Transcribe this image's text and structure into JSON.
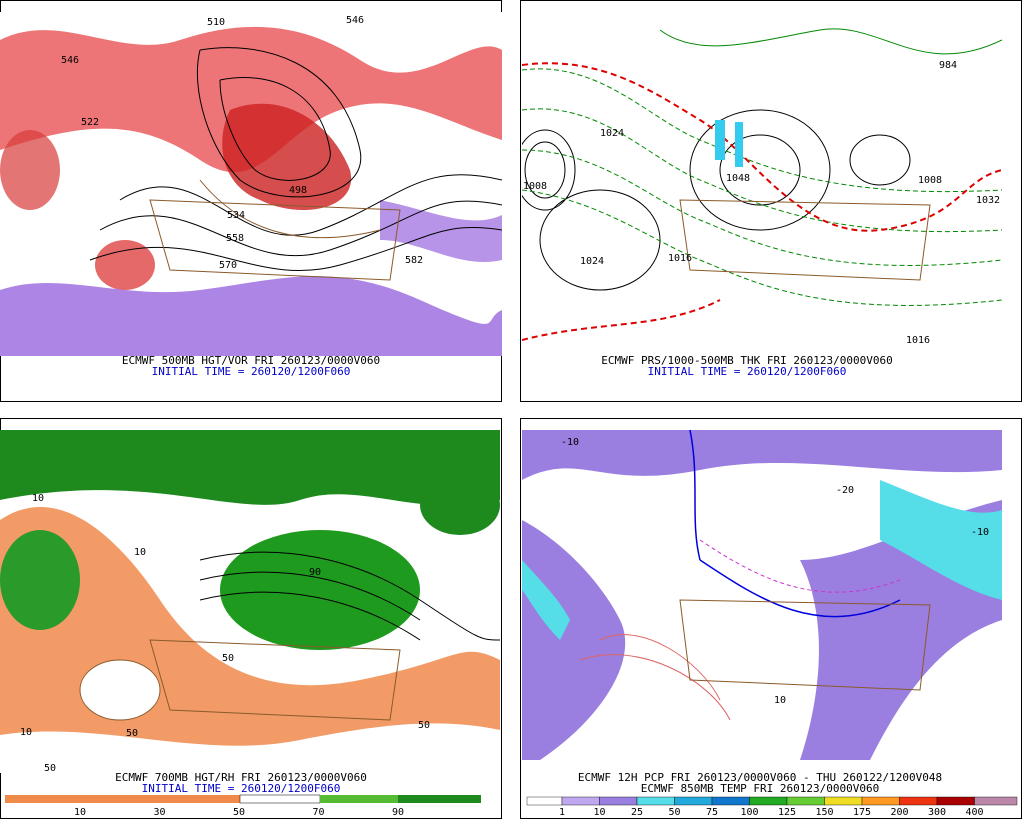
{
  "panels": [
    {
      "caption": "ECMWF 500MB HGT/VOR FRI 260123/0000V060",
      "initial_time": "INITIAL TIME = 260120/1200F060",
      "contour_labels": [
        "546",
        "558",
        "570",
        "582",
        "510",
        "522",
        "534",
        "498",
        "546"
      ]
    },
    {
      "caption": "ECMWF PRS/1000-500MB THK FRI 260123/0000V060",
      "initial_time": "INITIAL TIME = 260120/1200F060",
      "contour_labels": [
        "1024",
        "1024",
        "1008",
        "1016",
        "1032",
        "1008",
        "984",
        "1016",
        "1048"
      ]
    },
    {
      "caption": "ECMWF 700MB HGT/RH FRI 260123/0000V060",
      "initial_time": "INITIAL TIME = 260120/1200F060",
      "contour_labels": [
        "10",
        "50",
        "90",
        "50",
        "10",
        "50",
        "10",
        "50"
      ],
      "colorbar_labels": [
        "10",
        "30",
        "50",
        "70",
        "90"
      ]
    },
    {
      "caption": "ECMWF 12H PCP FRI 260123/0000V060 - THU 260122/1200V048",
      "initial_time": "ECMWF 850MB TEMP FRI 260123/0000V060",
      "contour_labels": [
        "-10",
        "-10",
        "10",
        "-20"
      ],
      "colorbar_labels": [
        "1",
        "10",
        "25",
        "50",
        "75",
        "100",
        "125",
        "150",
        "175",
        "200",
        "300",
        "400"
      ]
    }
  ]
}
